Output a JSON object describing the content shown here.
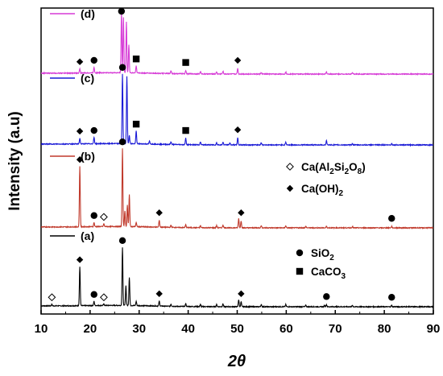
{
  "chart_data": {
    "type": "line",
    "xlabel": "2θ",
    "ylabel": "Intensity (a.u)",
    "xlim": [
      10,
      90
    ],
    "xticks": [
      "10",
      "20",
      "30",
      "40",
      "50",
      "60",
      "70",
      "80",
      "90"
    ],
    "yticks_shown": false,
    "grid": false,
    "legend_position": "right",
    "series": [
      {
        "name": "(a)",
        "color": "#000000",
        "baseline": 0.0,
        "peaks": [
          [
            12.2,
            0.02
          ],
          [
            17.9,
            0.55
          ],
          [
            20.8,
            0.06
          ],
          [
            22.8,
            0.02
          ],
          [
            26.6,
            0.82
          ],
          [
            27.3,
            0.28
          ],
          [
            28.0,
            0.4
          ],
          [
            29.4,
            0.06
          ],
          [
            34.1,
            0.07
          ],
          [
            36.5,
            0.03
          ],
          [
            39.5,
            0.04
          ],
          [
            42.5,
            0.03
          ],
          [
            45.8,
            0.03
          ],
          [
            47.1,
            0.04
          ],
          [
            50.3,
            0.1
          ],
          [
            50.8,
            0.07
          ],
          [
            54.9,
            0.03
          ],
          [
            59.9,
            0.03
          ],
          [
            64.0,
            0.02
          ],
          [
            67.8,
            0.02
          ],
          [
            68.2,
            0.03
          ],
          [
            73.5,
            0.02
          ],
          [
            81.5,
            0.02
          ]
        ],
        "markers": [
          [
            12.2,
            "anorthite"
          ],
          [
            17.9,
            "portlandite"
          ],
          [
            20.8,
            "quartz"
          ],
          [
            22.8,
            "anorthite"
          ],
          [
            26.6,
            "quartz"
          ],
          [
            34.1,
            "portlandite"
          ],
          [
            50.8,
            "portlandite"
          ],
          [
            68.2,
            "quartz"
          ],
          [
            81.5,
            "quartz"
          ]
        ]
      },
      {
        "name": "(b)",
        "color": "#c0392b",
        "baseline": 1.0,
        "peaks": [
          [
            17.9,
            0.85
          ],
          [
            20.8,
            0.06
          ],
          [
            22.8,
            0.04
          ],
          [
            26.6,
            1.1
          ],
          [
            27.1,
            0.22
          ],
          [
            27.6,
            0.3
          ],
          [
            28.0,
            0.45
          ],
          [
            29.4,
            0.06
          ],
          [
            34.1,
            0.1
          ],
          [
            36.5,
            0.03
          ],
          [
            39.5,
            0.04
          ],
          [
            42.5,
            0.03
          ],
          [
            45.8,
            0.03
          ],
          [
            47.1,
            0.04
          ],
          [
            50.3,
            0.13
          ],
          [
            50.8,
            0.1
          ],
          [
            54.9,
            0.03
          ],
          [
            59.9,
            0.03
          ],
          [
            64.0,
            0.02
          ],
          [
            68.2,
            0.02
          ],
          [
            73.5,
            0.02
          ],
          [
            81.5,
            0.02
          ]
        ],
        "markers": [
          [
            17.9,
            "portlandite"
          ],
          [
            20.8,
            "quartz"
          ],
          [
            22.8,
            "anorthite"
          ],
          [
            26.6,
            "quartz"
          ],
          [
            34.1,
            "portlandite"
          ],
          [
            50.8,
            "portlandite"
          ],
          [
            81.5,
            "quartz"
          ]
        ]
      },
      {
        "name": "(c)",
        "color": "#1a1ad6",
        "baseline": 2.0,
        "peaks": [
          [
            17.9,
            0.08
          ],
          [
            20.8,
            0.09
          ],
          [
            26.6,
            0.98
          ],
          [
            27.5,
            0.95
          ],
          [
            28.0,
            0.12
          ],
          [
            29.4,
            0.18
          ],
          [
            32.1,
            0.04
          ],
          [
            36.5,
            0.04
          ],
          [
            39.5,
            0.09
          ],
          [
            42.5,
            0.04
          ],
          [
            45.8,
            0.03
          ],
          [
            47.1,
            0.04
          ],
          [
            48.5,
            0.03
          ],
          [
            50.1,
            0.1
          ],
          [
            54.9,
            0.03
          ],
          [
            59.9,
            0.04
          ],
          [
            68.2,
            0.06
          ],
          [
            73.5,
            0.02
          ],
          [
            81.5,
            0.02
          ]
        ],
        "markers": [
          [
            17.9,
            "portlandite"
          ],
          [
            20.8,
            "quartz"
          ],
          [
            26.6,
            "quartz"
          ],
          [
            29.4,
            "calcite"
          ],
          [
            39.5,
            "calcite"
          ],
          [
            50.1,
            "portlandite"
          ]
        ]
      },
      {
        "name": "(d)",
        "color": "#d63ad6",
        "baseline": 3.0,
        "peaks": [
          [
            17.9,
            0.06
          ],
          [
            20.8,
            0.08
          ],
          [
            26.4,
            0.85
          ],
          [
            26.8,
            0.78
          ],
          [
            27.4,
            0.72
          ],
          [
            27.9,
            0.4
          ],
          [
            29.4,
            0.1
          ],
          [
            36.5,
            0.04
          ],
          [
            39.5,
            0.05
          ],
          [
            42.5,
            0.03
          ],
          [
            45.8,
            0.03
          ],
          [
            47.1,
            0.04
          ],
          [
            50.1,
            0.08
          ],
          [
            54.9,
            0.02
          ],
          [
            59.9,
            0.03
          ],
          [
            68.2,
            0.03
          ],
          [
            73.5,
            0.02
          ]
        ],
        "markers": [
          [
            17.9,
            "portlandite"
          ],
          [
            20.8,
            "quartz"
          ],
          [
            26.4,
            "quartz"
          ],
          [
            29.4,
            "calcite"
          ],
          [
            39.5,
            "calcite"
          ],
          [
            50.1,
            "portlandite"
          ]
        ]
      }
    ],
    "legend": [
      {
        "symbol": "open-diamond",
        "key": "anorthite",
        "text": "Ca(Al",
        "sub1": "2",
        "mid": "Si",
        "sub2": "2",
        "mid2": "O",
        "sub3": "8",
        "end": ")"
      },
      {
        "symbol": "filled-diamond",
        "key": "portlandite",
        "text": "Ca(OH)",
        "sub1": "2"
      },
      {
        "symbol": "filled-circle",
        "key": "quartz",
        "text": "SiO",
        "sub1": "2"
      },
      {
        "symbol": "filled-square",
        "key": "calcite",
        "text": "CaCO",
        "sub1": "3"
      }
    ]
  }
}
